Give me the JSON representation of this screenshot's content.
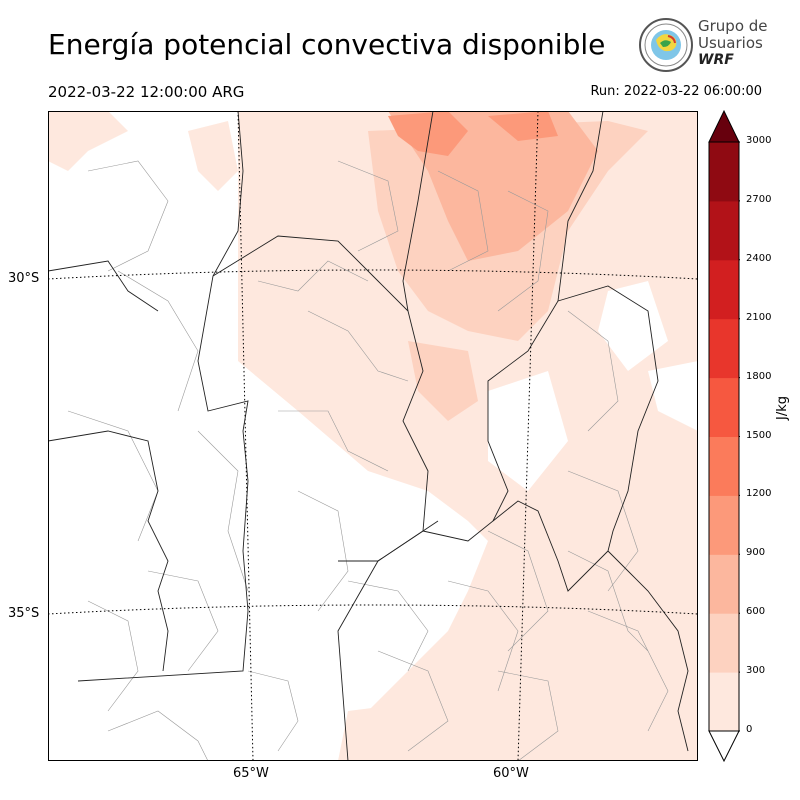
{
  "header": {
    "title": "Energía potencial convectiva disponible",
    "valid_time": "2022-03-22 12:00:00 ARG",
    "run_time": "Run: 2022-03-22 06:00:00"
  },
  "logo": {
    "line1": "Grupo de",
    "line2": "Usuarios",
    "line3": "WRF"
  },
  "map": {
    "latitude_labels": [
      "30°S",
      "35°S"
    ],
    "longitude_labels": [
      "65°W",
      "60°W"
    ]
  },
  "colorbar": {
    "unit": "J/kg",
    "ticks": [
      "0",
      "300",
      "600",
      "900",
      "1200",
      "1500",
      "1800",
      "2100",
      "2400",
      "2700",
      "3000"
    ],
    "colors": [
      "#fee8de",
      "#fdd2c0",
      "#fcb79e",
      "#fc997a",
      "#fb7b5b",
      "#f65840",
      "#e8362c",
      "#d21f20",
      "#b21218",
      "#8f0a12"
    ],
    "over_color": "#67000d",
    "under_color": "#ffffff"
  }
}
